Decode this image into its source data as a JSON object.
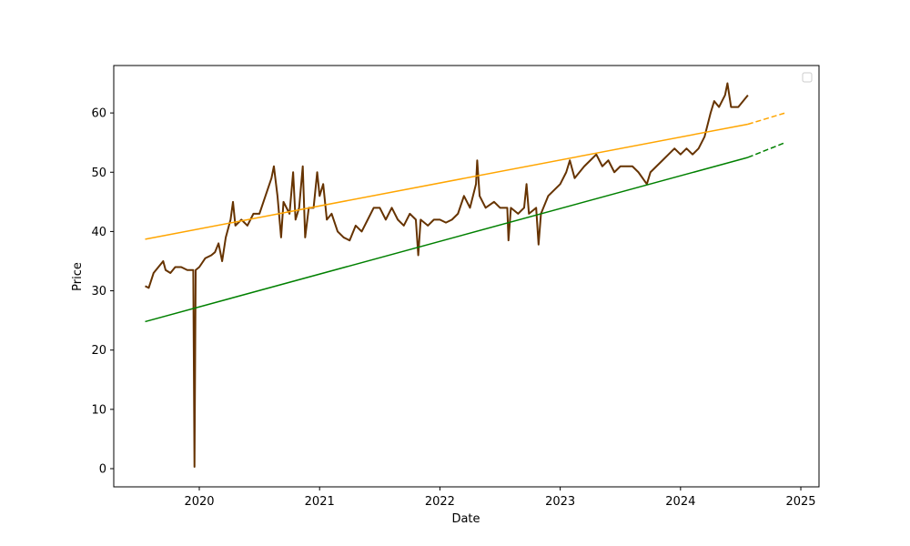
{
  "chart_data": {
    "type": "line",
    "xlabel": "Date",
    "ylabel": "Price",
    "xlim": [
      2019.289,
      2025.151
    ],
    "xticks": [
      2020,
      2021,
      2022,
      2023,
      2024,
      2025
    ],
    "ylim": [
      -3.07,
      68
    ],
    "yticks": [
      0,
      10,
      20,
      30,
      40,
      50,
      60
    ],
    "grid": false,
    "legend": "upper right",
    "series": [
      {
        "color": "#663300",
        "linestyle": "solid",
        "linewidth": 2,
        "x": [
          2019.55,
          2019.58,
          2019.62,
          2019.66,
          2019.7,
          2019.72,
          2019.76,
          2019.8,
          2019.85,
          2019.9,
          2019.95,
          2019.96,
          2019.97,
          2020.0,
          2020.05,
          2020.1,
          2020.13,
          2020.16,
          2020.19,
          2020.22,
          2020.26,
          2020.28,
          2020.3,
          2020.35,
          2020.4,
          2020.45,
          2020.5,
          2020.55,
          2020.6,
          2020.62,
          2020.65,
          2020.68,
          2020.7,
          2020.75,
          2020.78,
          2020.8,
          2020.83,
          2020.86,
          2020.88,
          2020.91,
          2020.95,
          2020.98,
          2021.0,
          2021.03,
          2021.06,
          2021.1,
          2021.15,
          2021.2,
          2021.25,
          2021.3,
          2021.35,
          2021.4,
          2021.45,
          2021.5,
          2021.55,
          2021.6,
          2021.65,
          2021.7,
          2021.75,
          2021.8,
          2021.82,
          2021.84,
          2021.9,
          2021.95,
          2022.0,
          2022.05,
          2022.1,
          2022.15,
          2022.2,
          2022.25,
          2022.3,
          2022.31,
          2022.33,
          2022.38,
          2022.45,
          2022.5,
          2022.56,
          2022.57,
          2022.59,
          2022.65,
          2022.7,
          2022.72,
          2022.74,
          2022.8,
          2022.82,
          2022.84,
          2022.9,
          2022.95,
          2023.0,
          2023.05,
          2023.08,
          2023.12,
          2023.2,
          2023.25,
          2023.3,
          2023.35,
          2023.4,
          2023.45,
          2023.5,
          2023.55,
          2023.6,
          2023.65,
          2023.72,
          2023.75,
          2023.8,
          2023.85,
          2023.9,
          2023.95,
          2024.0,
          2024.05,
          2024.1,
          2024.15,
          2024.2,
          2024.25,
          2024.28,
          2024.32,
          2024.37,
          2024.39,
          2024.42,
          2024.48,
          2024.52,
          2024.56
        ],
        "values": [
          30.8,
          30.5,
          33,
          34,
          35,
          33.5,
          33,
          34,
          34,
          33.5,
          33.5,
          0.3,
          33.5,
          34,
          35.5,
          36,
          36.5,
          38,
          35,
          39,
          42,
          45,
          41,
          42,
          41,
          43,
          43,
          46,
          49,
          51,
          46,
          39,
          45,
          43,
          50,
          42,
          44,
          51,
          39,
          44,
          44,
          50,
          46,
          48,
          42,
          43,
          40,
          39,
          38.5,
          41,
          40,
          42,
          44,
          44,
          42,
          44,
          42,
          41,
          43,
          42,
          36,
          42,
          41,
          42,
          42,
          41.5,
          42,
          43,
          46,
          44,
          48,
          52,
          46,
          44,
          45,
          44,
          44,
          38.5,
          44,
          43,
          44,
          48,
          43,
          44,
          37.8,
          43,
          46,
          47,
          48,
          50,
          52,
          49,
          51,
          52,
          53,
          51,
          52,
          50,
          51,
          51,
          51,
          50,
          48,
          50,
          51,
          52,
          53,
          54,
          53,
          54,
          53,
          54,
          56,
          60,
          62,
          61,
          63,
          65,
          61,
          61,
          62,
          63
        ]
      },
      {
        "color": "#ffa500",
        "linestyle": "solid",
        "linewidth": 1.5,
        "x": [
          2019.55,
          2024.56
        ],
        "values": [
          38.7,
          58.1
        ]
      },
      {
        "color": "#ffa500",
        "linestyle": "dashed",
        "linewidth": 1.5,
        "x": [
          2024.56,
          2024.87
        ],
        "values": [
          58.1,
          60
        ]
      },
      {
        "color": "#008000",
        "linestyle": "solid",
        "linewidth": 1.5,
        "x": [
          2019.55,
          2024.56
        ],
        "values": [
          24.8,
          52.5
        ]
      },
      {
        "color": "#008000",
        "linestyle": "dashed",
        "linewidth": 1.5,
        "x": [
          2024.56,
          2024.87
        ],
        "values": [
          52.5,
          55
        ]
      }
    ]
  }
}
